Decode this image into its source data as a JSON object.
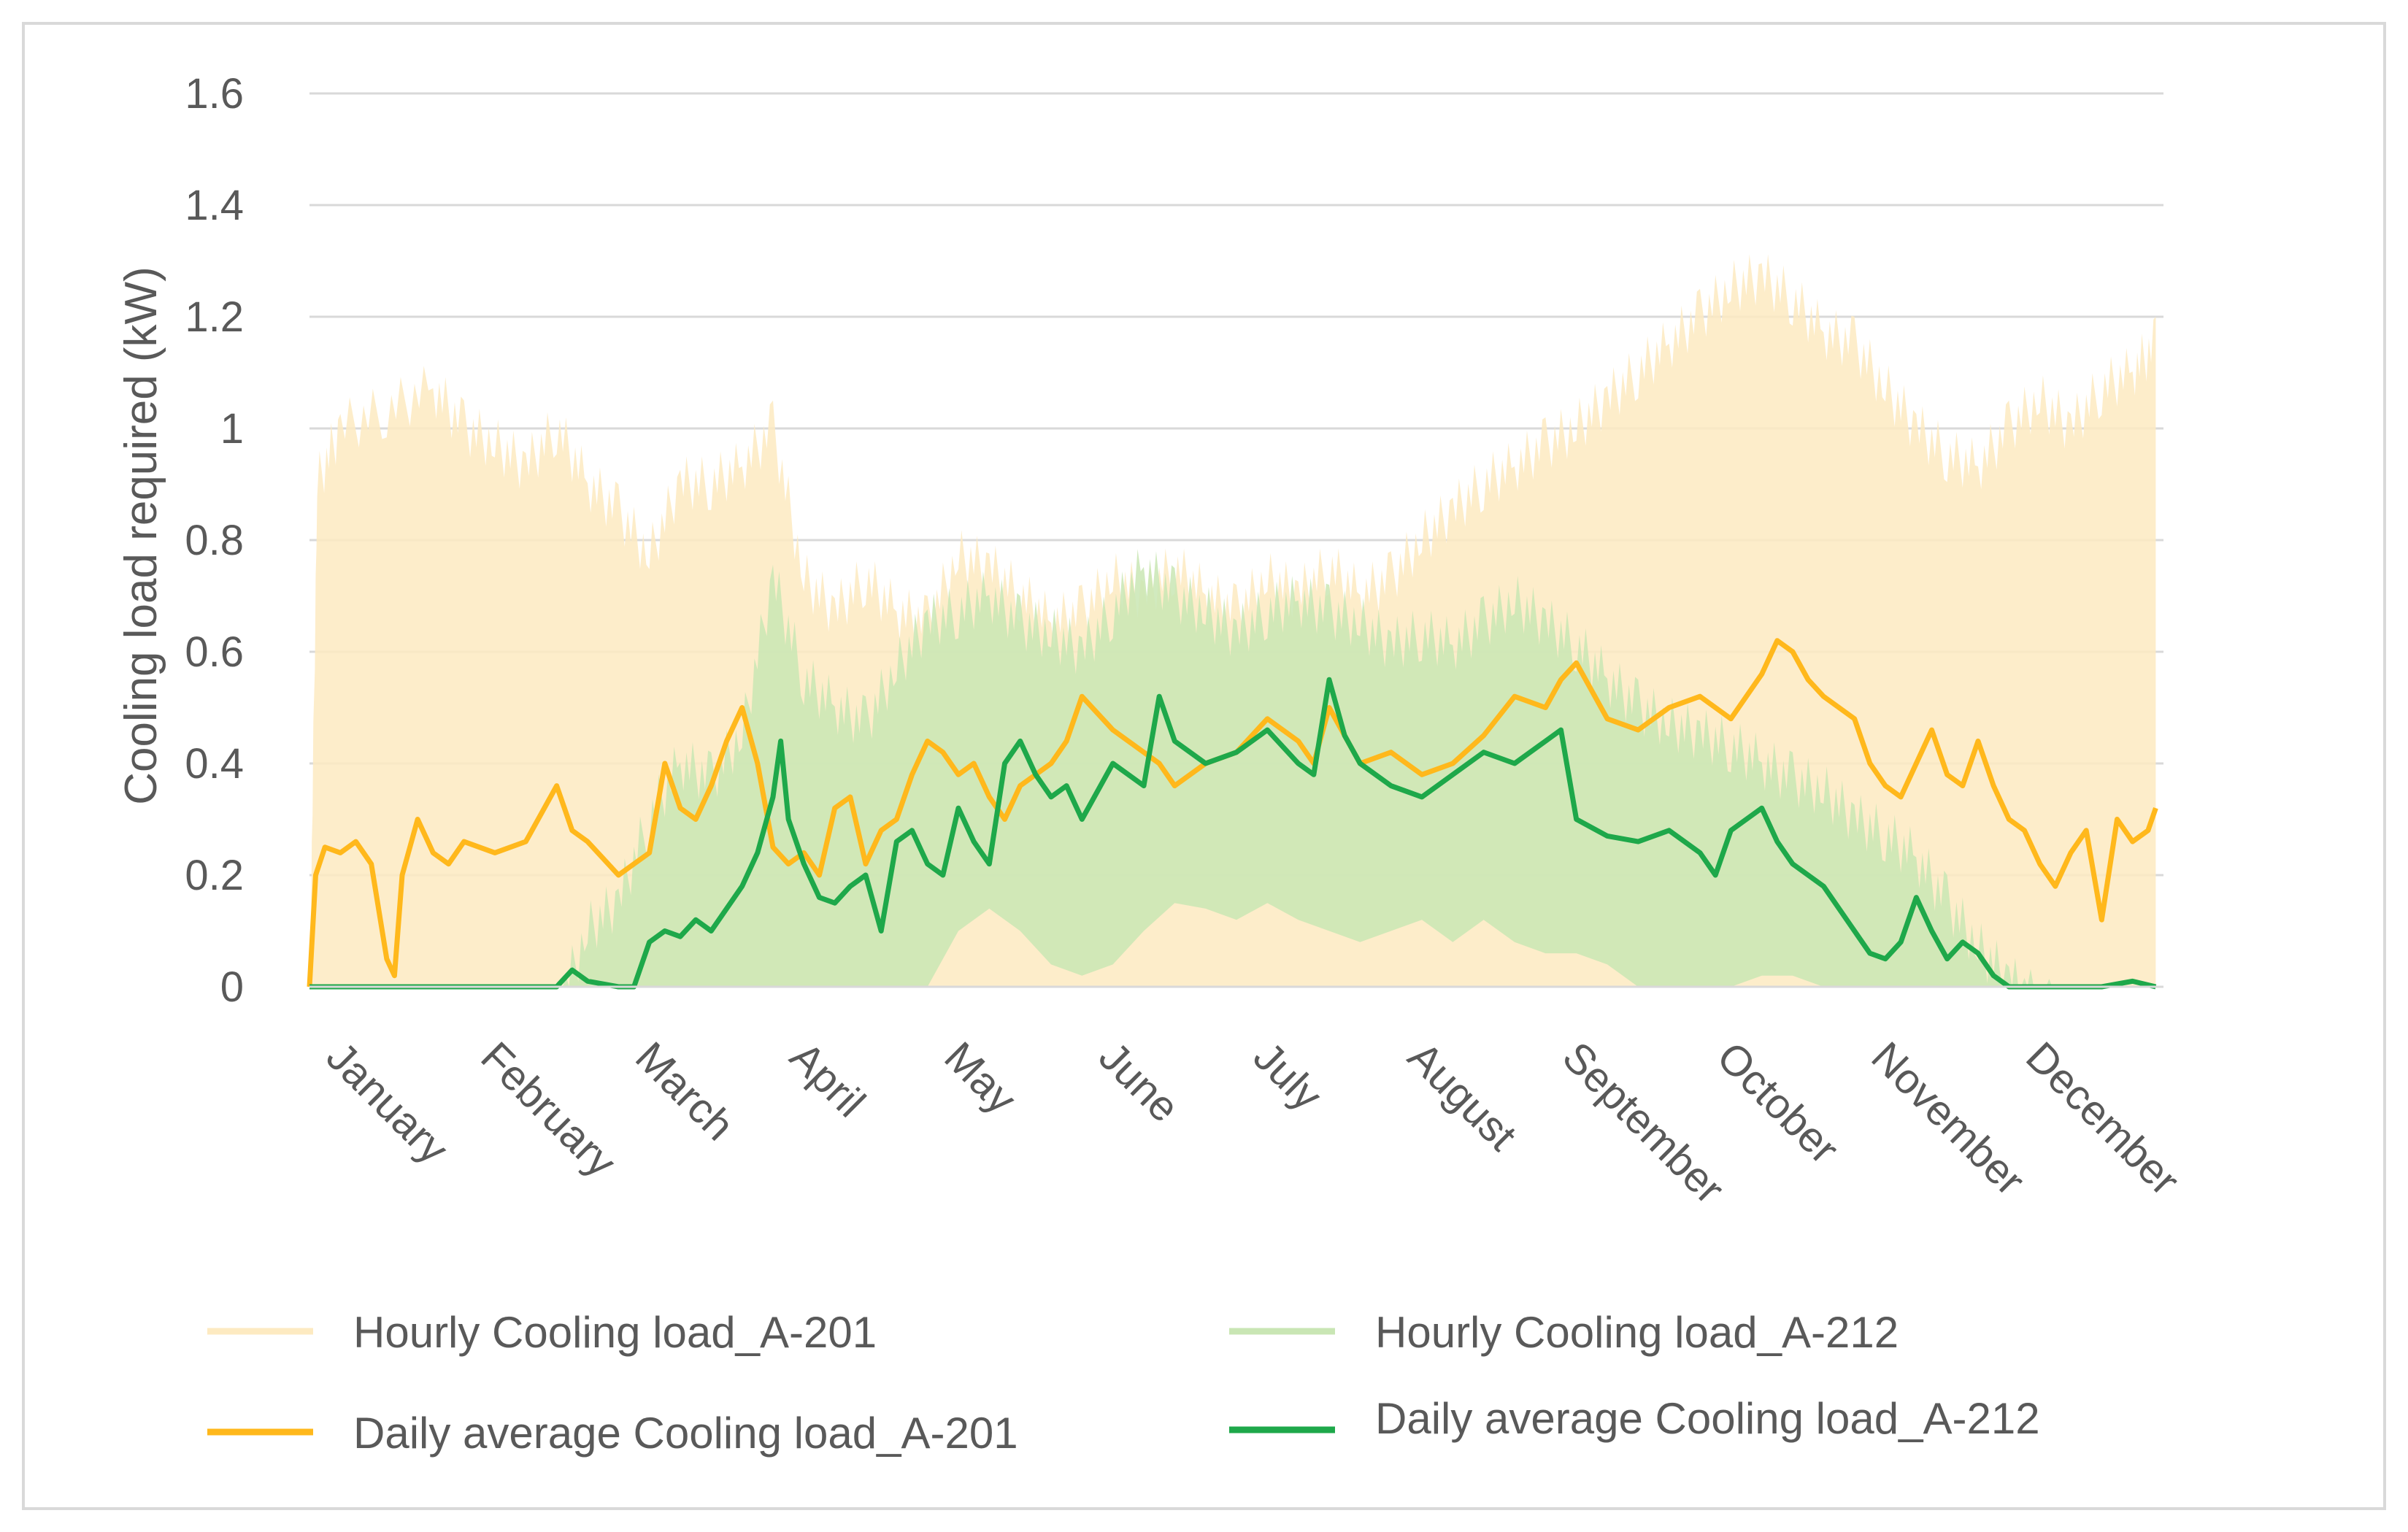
{
  "chart_data": {
    "type": "area",
    "title": "",
    "xlabel": "",
    "ylabel": "Cooling load required  (kW)",
    "ylim": [
      0,
      1.6
    ],
    "yticks": [
      0,
      0.2,
      0.4,
      0.6,
      0.8,
      1,
      1.2,
      1.4,
      1.6
    ],
    "ytick_labels": [
      "0",
      "0.2",
      "0.4",
      "0.6",
      "0.8",
      "1",
      "1.2",
      "1.4",
      "1.6"
    ],
    "months": [
      "January",
      "February",
      "March",
      "April",
      "May",
      "June",
      "July",
      "August",
      "September",
      "October",
      "November",
      "December"
    ],
    "grid": true,
    "legend_position": "bottom",
    "x_unit": "month (0-12)",
    "series": [
      {
        "name": "Hourly Cooling load_A-201",
        "kind": "band",
        "color": "#fdeac1",
        "x": [
          0.0,
          0.05,
          0.2,
          0.5,
          0.8,
          1.0,
          1.2,
          1.4,
          1.6,
          1.8,
          2.0,
          2.2,
          2.4,
          2.6,
          2.8,
          3.0,
          3.2,
          3.4,
          3.6,
          3.8,
          4.0,
          4.2,
          4.4,
          4.6,
          4.8,
          5.0,
          5.2,
          5.4,
          5.6,
          5.8,
          6.0,
          6.2,
          6.4,
          6.6,
          6.8,
          7.0,
          7.2,
          7.4,
          7.6,
          7.8,
          8.0,
          8.2,
          8.4,
          8.6,
          8.8,
          9.0,
          9.2,
          9.4,
          9.6,
          9.8,
          10.0,
          10.2,
          10.4,
          10.6,
          10.8,
          11.0,
          11.2,
          11.4,
          11.6,
          11.8,
          11.95
        ],
        "max": [
          0.0,
          0.95,
          1.05,
          1.08,
          1.12,
          1.05,
          1.02,
          0.98,
          1.05,
          0.95,
          0.9,
          0.82,
          0.95,
          0.95,
          0.98,
          1.05,
          0.78,
          0.72,
          0.78,
          0.72,
          0.7,
          0.82,
          0.8,
          0.75,
          0.7,
          0.72,
          0.78,
          0.75,
          0.8,
          0.75,
          0.72,
          0.78,
          0.75,
          0.8,
          0.75,
          0.78,
          0.85,
          0.9,
          0.95,
          0.98,
          1.02,
          1.05,
          1.1,
          1.15,
          1.2,
          1.25,
          1.3,
          1.32,
          1.28,
          1.22,
          1.2,
          1.12,
          1.05,
          1.0,
          0.98,
          1.05,
          1.1,
          1.05,
          1.12,
          1.15,
          1.2
        ],
        "min": [
          0.0,
          0.0,
          0.0,
          0.0,
          0.0,
          0.0,
          0.0,
          0.0,
          0.0,
          0.0,
          0.0,
          0.0,
          0.0,
          0.0,
          0.0,
          0.0,
          0.0,
          0.0,
          0.0,
          0.0,
          0.0,
          0.0,
          0.0,
          0.0,
          0.0,
          0.0,
          0.0,
          0.0,
          0.0,
          0.0,
          0.0,
          0.0,
          0.0,
          0.0,
          0.0,
          0.0,
          0.0,
          0.0,
          0.0,
          0.0,
          0.0,
          0.0,
          0.0,
          0.0,
          0.0,
          0.0,
          0.0,
          0.0,
          0.0,
          0.0,
          0.0,
          0.0,
          0.0,
          0.0,
          0.0,
          0.0,
          0.0,
          0.0,
          0.0,
          0.0,
          0.0
        ]
      },
      {
        "name": "Hourly Cooling load_A-212",
        "kind": "band",
        "color": "#c9e6b4",
        "x": [
          1.6,
          1.8,
          2.0,
          2.2,
          2.4,
          2.6,
          2.8,
          3.0,
          3.2,
          3.4,
          3.6,
          3.8,
          4.0,
          4.2,
          4.4,
          4.6,
          4.8,
          5.0,
          5.2,
          5.4,
          5.6,
          5.8,
          6.0,
          6.2,
          6.4,
          6.6,
          6.8,
          7.0,
          7.2,
          7.4,
          7.6,
          7.8,
          8.0,
          8.2,
          8.4,
          8.6,
          8.8,
          9.0,
          9.2,
          9.4,
          9.6,
          9.8,
          10.0,
          10.2,
          10.4,
          10.6,
          10.8,
          11.0,
          11.2,
          11.4,
          11.6
        ],
        "max": [
          0.0,
          0.15,
          0.2,
          0.35,
          0.45,
          0.42,
          0.5,
          0.78,
          0.6,
          0.55,
          0.52,
          0.62,
          0.7,
          0.72,
          0.75,
          0.7,
          0.68,
          0.65,
          0.72,
          0.8,
          0.75,
          0.72,
          0.68,
          0.72,
          0.74,
          0.72,
          0.7,
          0.66,
          0.68,
          0.66,
          0.7,
          0.74,
          0.7,
          0.66,
          0.6,
          0.55,
          0.52,
          0.5,
          0.48,
          0.45,
          0.42,
          0.4,
          0.35,
          0.32,
          0.28,
          0.2,
          0.12,
          0.06,
          0.02,
          0.0,
          0.0
        ],
        "min": [
          0.0,
          0.0,
          0.0,
          0.0,
          0.0,
          0.0,
          0.0,
          0.0,
          0.0,
          0.0,
          0.0,
          0.0,
          0.0,
          0.1,
          0.14,
          0.1,
          0.04,
          0.02,
          0.04,
          0.1,
          0.15,
          0.14,
          0.12,
          0.15,
          0.12,
          0.1,
          0.08,
          0.1,
          0.12,
          0.08,
          0.12,
          0.08,
          0.06,
          0.06,
          0.04,
          0.0,
          0.0,
          0.0,
          0.0,
          0.02,
          0.02,
          0.0,
          0.0,
          0.0,
          0.0,
          0.0,
          0.0,
          0.0,
          0.0,
          0.0,
          0.0
        ]
      },
      {
        "name": "Daily average Cooling load_A-201",
        "kind": "line",
        "color": "#ffb81c",
        "x": [
          0.0,
          0.04,
          0.1,
          0.2,
          0.3,
          0.4,
          0.5,
          0.55,
          0.6,
          0.65,
          0.7,
          0.8,
          0.9,
          1.0,
          1.2,
          1.4,
          1.6,
          1.65,
          1.7,
          1.8,
          1.9,
          2.0,
          2.1,
          2.2,
          2.3,
          2.4,
          2.5,
          2.6,
          2.7,
          2.8,
          2.9,
          3.0,
          3.1,
          3.2,
          3.3,
          3.4,
          3.5,
          3.6,
          3.7,
          3.8,
          3.9,
          4.0,
          4.1,
          4.2,
          4.3,
          4.4,
          4.5,
          4.6,
          4.7,
          4.8,
          4.9,
          5.0,
          5.2,
          5.4,
          5.5,
          5.6,
          5.8,
          6.0,
          6.2,
          6.4,
          6.5,
          6.6,
          6.7,
          6.8,
          7.0,
          7.2,
          7.4,
          7.6,
          7.8,
          8.0,
          8.1,
          8.2,
          8.4,
          8.6,
          8.8,
          9.0,
          9.2,
          9.4,
          9.5,
          9.6,
          9.7,
          9.8,
          10.0,
          10.1,
          10.2,
          10.3,
          10.4,
          10.5,
          10.6,
          10.7,
          10.8,
          10.9,
          11.0,
          11.1,
          11.2,
          11.3,
          11.4,
          11.5,
          11.6,
          11.7,
          11.8,
          11.9,
          11.95
        ],
        "y": [
          0.0,
          0.2,
          0.25,
          0.24,
          0.26,
          0.22,
          0.05,
          0.02,
          0.2,
          0.25,
          0.3,
          0.24,
          0.22,
          0.26,
          0.24,
          0.26,
          0.36,
          0.32,
          0.28,
          0.26,
          0.23,
          0.2,
          0.22,
          0.24,
          0.4,
          0.32,
          0.3,
          0.36,
          0.44,
          0.5,
          0.4,
          0.25,
          0.22,
          0.24,
          0.2,
          0.32,
          0.34,
          0.22,
          0.28,
          0.3,
          0.38,
          0.44,
          0.42,
          0.38,
          0.4,
          0.34,
          0.3,
          0.36,
          0.38,
          0.4,
          0.44,
          0.52,
          0.46,
          0.42,
          0.4,
          0.36,
          0.4,
          0.42,
          0.48,
          0.44,
          0.4,
          0.5,
          0.45,
          0.4,
          0.42,
          0.38,
          0.4,
          0.45,
          0.52,
          0.5,
          0.55,
          0.58,
          0.48,
          0.46,
          0.5,
          0.52,
          0.48,
          0.56,
          0.62,
          0.6,
          0.55,
          0.52,
          0.48,
          0.4,
          0.36,
          0.34,
          0.4,
          0.46,
          0.38,
          0.36,
          0.44,
          0.36,
          0.3,
          0.28,
          0.22,
          0.18,
          0.24,
          0.28,
          0.12,
          0.3,
          0.26,
          0.28,
          0.32
        ]
      },
      {
        "name": "Daily average Cooling load_A-212",
        "kind": "line",
        "color": "#1ea84a",
        "x": [
          0.0,
          1.6,
          1.7,
          1.8,
          2.0,
          2.1,
          2.2,
          2.3,
          2.4,
          2.5,
          2.6,
          2.7,
          2.8,
          2.9,
          3.0,
          3.05,
          3.1,
          3.2,
          3.3,
          3.4,
          3.5,
          3.6,
          3.7,
          3.8,
          3.9,
          4.0,
          4.1,
          4.2,
          4.3,
          4.4,
          4.5,
          4.6,
          4.7,
          4.8,
          4.9,
          5.0,
          5.2,
          5.4,
          5.5,
          5.6,
          5.8,
          6.0,
          6.2,
          6.4,
          6.5,
          6.6,
          6.7,
          6.8,
          7.0,
          7.2,
          7.4,
          7.6,
          7.8,
          8.0,
          8.1,
          8.2,
          8.4,
          8.6,
          8.8,
          9.0,
          9.1,
          9.2,
          9.4,
          9.5,
          9.6,
          9.8,
          10.0,
          10.1,
          10.2,
          10.3,
          10.4,
          10.5,
          10.6,
          10.7,
          10.8,
          10.9,
          11.0,
          11.2,
          11.4,
          11.6,
          11.8,
          11.95
        ],
        "y": [
          0.0,
          0.0,
          0.03,
          0.01,
          0.0,
          0.0,
          0.08,
          0.1,
          0.09,
          0.12,
          0.1,
          0.14,
          0.18,
          0.24,
          0.34,
          0.44,
          0.3,
          0.22,
          0.16,
          0.15,
          0.18,
          0.2,
          0.1,
          0.26,
          0.28,
          0.22,
          0.2,
          0.32,
          0.26,
          0.22,
          0.4,
          0.44,
          0.38,
          0.34,
          0.36,
          0.3,
          0.4,
          0.36,
          0.52,
          0.44,
          0.4,
          0.42,
          0.46,
          0.4,
          0.38,
          0.55,
          0.45,
          0.4,
          0.36,
          0.34,
          0.38,
          0.42,
          0.4,
          0.44,
          0.46,
          0.3,
          0.27,
          0.26,
          0.28,
          0.24,
          0.2,
          0.28,
          0.32,
          0.26,
          0.22,
          0.18,
          0.1,
          0.06,
          0.05,
          0.08,
          0.16,
          0.1,
          0.05,
          0.08,
          0.06,
          0.02,
          0.0,
          0.0,
          0.0,
          0.0,
          0.01,
          0.0
        ]
      }
    ]
  },
  "legend": {
    "items": [
      {
        "label": "Hourly Cooling load_A-201",
        "color": "#fdeac1"
      },
      {
        "label": "Hourly Cooling load_A-212",
        "color": "#c9e6b4"
      },
      {
        "label": "Daily average Cooling load_A-201",
        "color": "#ffb81c"
      },
      {
        "label": "Daily average Cooling load_A-212",
        "color": "#1ea84a"
      }
    ]
  }
}
